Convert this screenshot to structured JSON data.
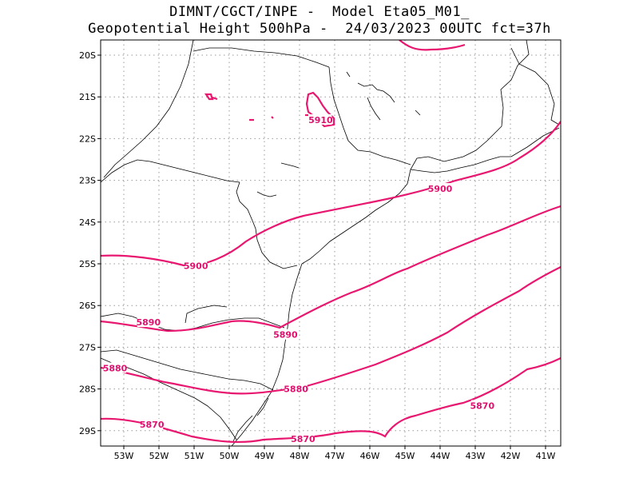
{
  "header": {
    "title_line1": "DIMNT/CGCT/INPE -  Model Eta05_M01_",
    "title_line2": "Geopotential Height 500hPa -  24/03/2023 00UTC fct=37h"
  },
  "map": {
    "x_ticks": [
      "53W",
      "52W",
      "51W",
      "50W",
      "49W",
      "48W",
      "47W",
      "46W",
      "45W",
      "44W",
      "43W",
      "42W",
      "41W"
    ],
    "y_ticks": [
      "20S",
      "21S",
      "22S",
      "23S",
      "24S",
      "25S",
      "26S",
      "27S",
      "28S",
      "29S"
    ],
    "colors": {
      "contour": "#e8176f",
      "coast": "#000000",
      "grid": "#9a9a9a"
    },
    "contour_labels": [
      {
        "text": "5910",
        "lon": -47.4,
        "lat": -21.55
      },
      {
        "text": "5900",
        "lon": -44.0,
        "lat": -23.2
      },
      {
        "text": "5900",
        "lon": -50.95,
        "lat": -25.05
      },
      {
        "text": "5890",
        "lon": -52.3,
        "lat": -26.4
      },
      {
        "text": "5890",
        "lon": -48.4,
        "lat": -26.7
      },
      {
        "text": "5880",
        "lon": -53.25,
        "lat": -27.5
      },
      {
        "text": "5880",
        "lon": -48.1,
        "lat": -28.0
      },
      {
        "text": "5870",
        "lon": -52.2,
        "lat": -28.85
      },
      {
        "text": "5870",
        "lon": -47.9,
        "lat": -29.2
      },
      {
        "text": "5870",
        "lon": -42.8,
        "lat": -28.4
      }
    ]
  }
}
